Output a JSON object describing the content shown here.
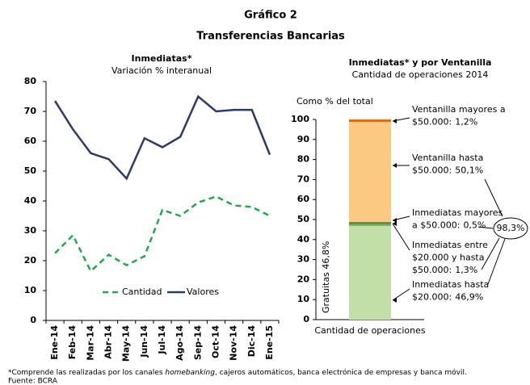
{
  "title": "Gráfico 2",
  "subtitle": "Transferencias Bancarias",
  "note": [
    "*Comprende las realizadas por los canales ",
    "homebanking",
    ", cajeros automáticos, banca electrónica de empresas y banca móvil."
  ],
  "source": "Fuente: BCRA",
  "chart_data": [
    {
      "type": "line",
      "title": "Inmediatas*",
      "subtitle": "Variación % interanual",
      "categories": [
        "Ene-14",
        "Feb-14",
        "Mar-14",
        "Abr-14",
        "May-14",
        "Jun-14",
        "Jul-14",
        "Ago-14",
        "Sep-14",
        "Oct-14",
        "Nov-14",
        "Dic-14",
        "Ene-15"
      ],
      "series": [
        {
          "name": "Cantidad",
          "color": "#1faa4a",
          "style": "dashed",
          "values": [
            22.5,
            28.5,
            16.5,
            22,
            18.5,
            21.5,
            37,
            35,
            39.5,
            41.5,
            38.5,
            38,
            35
          ]
        },
        {
          "name": "Valores",
          "color": "#2b3a67",
          "style": "solid",
          "values": [
            73.5,
            64,
            56,
            54,
            47.5,
            61,
            58,
            61.5,
            75,
            70,
            70.5,
            70.5,
            55.5
          ]
        }
      ],
      "ylim": [
        0,
        80
      ],
      "yticks": [
        0,
        10,
        20,
        30,
        40,
        50,
        60,
        70,
        80
      ],
      "legend": "bottom"
    },
    {
      "type": "stacked_bar",
      "title": "Inmediatas* y por Ventanilla",
      "subtitle": "Cantidad de operaciones 2014",
      "ylabel": "Como % del total",
      "categories": [
        "Cantidad de operaciones"
      ],
      "series": [
        {
          "label": [
            "Inmediatas hasta",
            "$20.000:"
          ],
          "color": "#c3dfa8",
          "values": [
            46.9
          ],
          "value_labels": [
            "46,9%"
          ]
        },
        {
          "label": [
            "Inmediatas entre",
            "$20.000 y hasta",
            "$50.000:"
          ],
          "color": "#6da34d",
          "values": [
            1.3
          ],
          "value_labels": [
            "1,3%"
          ]
        },
        {
          "label": [
            "Inmediatas mayores",
            "a $50.000:"
          ],
          "color": "#2f5e2a",
          "values": [
            0.5
          ],
          "value_labels": [
            "0,5%"
          ]
        },
        {
          "label": [
            "Ventanilla hasta",
            "$50.000:"
          ],
          "color": "#fcc983",
          "values": [
            50.1
          ],
          "value_labels": [
            "50,1%"
          ]
        },
        {
          "label": [
            "Ventanilla mayores a",
            "$50.000:"
          ],
          "color": "#e2690e",
          "values": [
            1.2
          ],
          "value_labels": [
            "1,2%"
          ]
        }
      ],
      "annotations": [
        "Gratuitas 46,8%",
        "98,3%"
      ],
      "ylim": [
        0,
        100
      ],
      "yticks": [
        0,
        10,
        20,
        30,
        40,
        50,
        60,
        70,
        80,
        90,
        100
      ]
    }
  ]
}
